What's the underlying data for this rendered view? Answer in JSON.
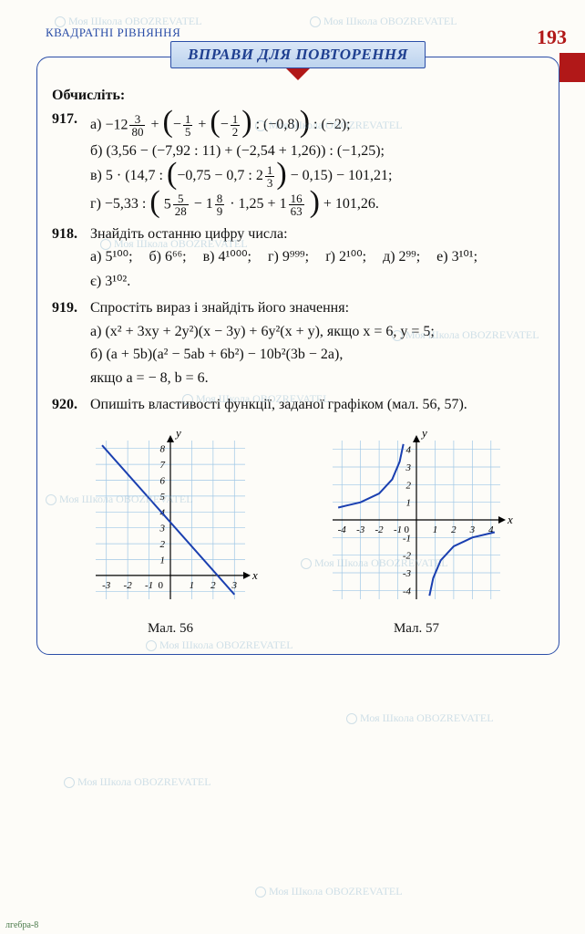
{
  "header": {
    "section": "КВАДРАТНІ  РІВНЯННЯ",
    "page_number": "193",
    "banner": "ВПРАВИ ДЛЯ ПОВТОРЕННЯ"
  },
  "colors": {
    "frame_border": "#2b4ea8",
    "banner_bg_top": "#dbe7f7",
    "banner_bg_bottom": "#bcd3ee",
    "banner_text": "#1f3f90",
    "red_accent": "#b11818",
    "line_color": "#1a3fb0",
    "grid_color": "#9fc7e6",
    "axis_color": "#000000"
  },
  "lead": "Обчисліть:",
  "p917": {
    "num": "917.",
    "a_label": "а)",
    "a_whole": "−12",
    "a_f1n": "3",
    "a_f1d": "80",
    "a_mid1": " + ",
    "a_f2n": "1",
    "a_f2d": "5",
    "a_mid2": " + ",
    "a_f3n": "1",
    "a_f3d": "2",
    "a_mid3": " : (−0,8)",
    "a_tail": " : (−2);",
    "b_label": "б)",
    "b": "(3,56 − (−7,92 : 11) + (−2,54 + 1,26)) : (−1,25);",
    "c_label": "в)",
    "c_pre": "5 · (14,7 : ",
    "c_inparen_pre": "−0,75 − 0,7 : 2",
    "c_fn": "1",
    "c_fd": "3",
    "c_post": " − 0,15) − 101,21;",
    "d_label": "г)",
    "d_pre": "−5,33 : ",
    "d_m1w": "5",
    "d_m1n": "5",
    "d_m1d": "28",
    "d_mid1": " − 1",
    "d_m2n": "8",
    "d_m2d": "9",
    "d_mid2": " · 1,25 + 1",
    "d_m3n": "16",
    "d_m3d": "63",
    "d_tail": " + 101,26."
  },
  "p918": {
    "num": "918.",
    "lead": "Знайдіть останню цифру числа:",
    "items": [
      {
        "l": "а)",
        "t": "5¹⁰⁰;"
      },
      {
        "l": "б)",
        "t": "6⁶⁶;"
      },
      {
        "l": "в)",
        "t": "4¹⁰⁰⁰;"
      },
      {
        "l": "г)",
        "t": "9⁹⁹⁹;"
      },
      {
        "l": "ґ)",
        "t": "2¹⁰⁰;"
      },
      {
        "l": "д)",
        "t": "2⁹⁹;"
      },
      {
        "l": "е)",
        "t": "3¹⁰¹;"
      },
      {
        "l": "є)",
        "t": "3¹⁰²."
      }
    ]
  },
  "p919": {
    "num": "919.",
    "lead": "Спростіть вираз і знайдіть його значення:",
    "a_label": "а)",
    "a": "(x² + 3xy + 2y²)(x − 3y) + 6y²(x + y), якщо x = 6, y = 5;",
    "b_label": "б)",
    "b_line1": "(a + 5b)(a² − 5ab + 6b²) − 10b²(3b − 2a),",
    "b_line2": "якщо a = − 8, b = 6."
  },
  "p920": {
    "num": "920.",
    "text": "Опишіть властивості функції, заданої графіком (мал. 56, 57)."
  },
  "graph1": {
    "caption": "Мал. 56",
    "type": "line",
    "xlim": [
      -3.5,
      3.5
    ],
    "ylim": [
      -1.5,
      8.5
    ],
    "xticks": [
      -3,
      -2,
      -1,
      1,
      2,
      3
    ],
    "yticks": [
      1,
      2,
      3,
      4,
      5,
      6,
      7,
      8
    ],
    "grid_color": "#9fc7e6",
    "axis_color": "#000000",
    "line_color": "#1a3fb0",
    "line_width": 2,
    "points": [
      [
        -3.2,
        8.2
      ],
      [
        3.0,
        -1.2
      ]
    ]
  },
  "graph2": {
    "caption": "Мал. 57",
    "type": "hyperbola",
    "xlim": [
      -4.5,
      4.5
    ],
    "ylim": [
      -4.5,
      4.5
    ],
    "xticks": [
      -4,
      -3,
      -2,
      -1,
      1,
      2,
      3,
      4
    ],
    "yticks": [
      -4,
      -3,
      -2,
      -1,
      1,
      2,
      3,
      4
    ],
    "grid_color": "#9fc7e6",
    "axis_color": "#000000",
    "line_color": "#1a3fb0",
    "line_width": 2,
    "k": -3,
    "branches": [
      [
        [
          -4.2,
          0.7
        ],
        [
          -3,
          1.0
        ],
        [
          -2,
          1.5
        ],
        [
          -1.3,
          2.3
        ],
        [
          -0.9,
          3.3
        ],
        [
          -0.7,
          4.3
        ]
      ],
      [
        [
          0.7,
          -4.3
        ],
        [
          0.9,
          -3.3
        ],
        [
          1.3,
          -2.3
        ],
        [
          2,
          -1.5
        ],
        [
          3,
          -1.0
        ],
        [
          4.2,
          -0.7
        ]
      ]
    ]
  },
  "footer": "лгебра-8",
  "watermark_text": "Моя Школа   OBOZREVATEL"
}
